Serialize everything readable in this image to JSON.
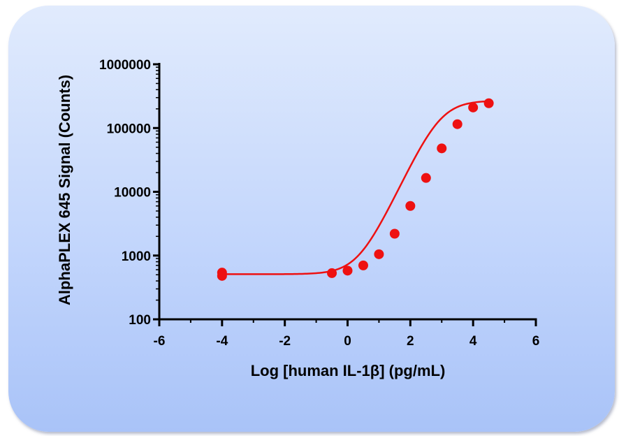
{
  "chart_data": {
    "type": "scatter",
    "xlabel": "Log [human IL-1β] (pg/mL)",
    "ylabel": "AlphaPLEX 645 Signal (Counts)",
    "xlim": [
      -6,
      6
    ],
    "ylim": [
      100,
      1000000
    ],
    "y_scale": "log",
    "x_ticks": [
      -6,
      -4,
      -2,
      0,
      2,
      4,
      6
    ],
    "x_tick_labels": [
      "-6",
      "-4",
      "-2",
      "0",
      "2",
      "4",
      "6"
    ],
    "y_ticks": [
      100,
      1000,
      10000,
      100000,
      1000000
    ],
    "y_tick_labels": [
      "100",
      "1000",
      "10000",
      "100000",
      "1000000"
    ],
    "grid": false,
    "legend": false,
    "colors": {
      "series": "#ee1111",
      "panel_top": "#e1ebfd",
      "panel_bottom": "#a9c3f8"
    },
    "series": [
      {
        "x": [
          -4,
          -4,
          -0.5,
          0,
          0.5,
          1,
          1.5,
          2,
          2.5,
          3,
          3.5,
          4,
          4.5
        ],
        "y": [
          540,
          480,
          530,
          580,
          700,
          1050,
          2200,
          6000,
          16500,
          48000,
          115000,
          210000,
          245000
        ],
        "fit": "sigmoidal"
      }
    ]
  }
}
